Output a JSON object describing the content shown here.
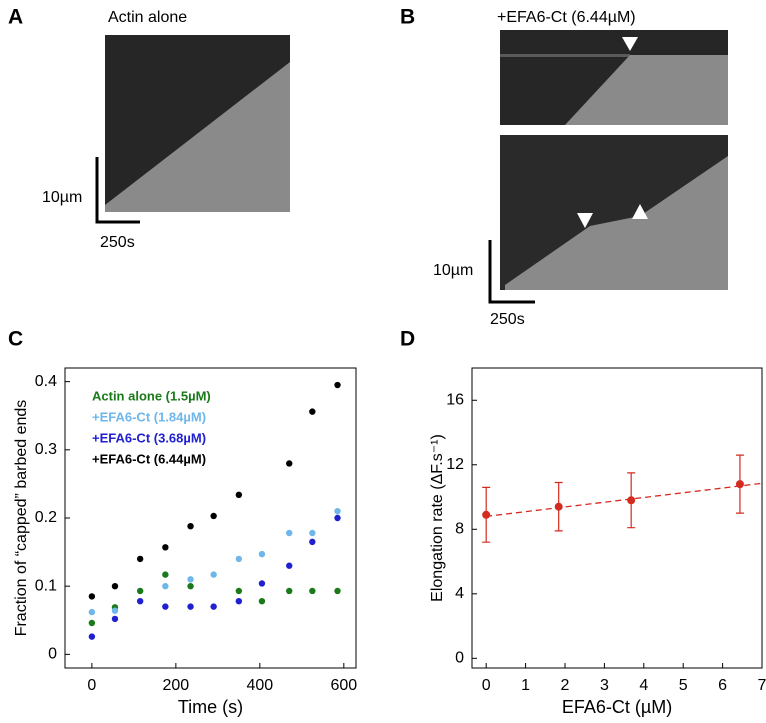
{
  "panels": {
    "A": {
      "label": "A",
      "title": "Actin alone",
      "scale_y": "10µm",
      "scale_x": "250s"
    },
    "B": {
      "label": "B",
      "title": "+EFA6-Ct (6.44µM)",
      "scale_y": "10µm",
      "scale_x": "250s"
    }
  },
  "chart_data": [
    {
      "type": "scatter",
      "panel": "C",
      "xlabel": "Time (s)",
      "ylabel": "Fraction of “capped” barbed ends",
      "x": [
        0,
        55,
        115,
        175,
        235,
        290,
        350,
        405,
        470,
        525,
        585
      ],
      "series": [
        {
          "name": "Actin alone (1.5µM)",
          "color": "#1a7a1a",
          "values": [
            0.046,
            0.069,
            0.093,
            0.117,
            0.1,
            null,
            0.093,
            0.078,
            0.093,
            0.093,
            0.093
          ]
        },
        {
          "name": "+EFA6-Ct (1.84µM)",
          "color": "#6fb7ea",
          "values": [
            0.062,
            0.064,
            null,
            0.1,
            0.11,
            0.117,
            0.14,
            0.147,
            0.178,
            0.178,
            0.21
          ]
        },
        {
          "name": "+EFA6-Ct (3.68µM)",
          "color": "#2020d0",
          "values": [
            0.026,
            0.052,
            0.078,
            0.07,
            0.07,
            0.07,
            0.078,
            0.104,
            0.13,
            0.165,
            0.2
          ]
        },
        {
          "name": "+EFA6-Ct (6.44µM)",
          "color": "#000000",
          "values": [
            0.085,
            0.1,
            0.14,
            0.157,
            0.188,
            0.203,
            0.234,
            null,
            0.28,
            0.356,
            0.395
          ]
        }
      ],
      "xlim": [
        -64,
        629
      ],
      "ylim": [
        -0.02,
        0.42
      ],
      "xticks": [
        0,
        200,
        400,
        600
      ],
      "yticks": [
        0,
        0.1,
        0.2,
        0.3,
        0.4
      ]
    },
    {
      "type": "errorbar",
      "panel": "D",
      "xlabel": "EFA6-Ct (µM)",
      "ylabel": "Elongation rate (ΔF.s⁻¹)",
      "series": [
        {
          "color": "#d42a1f",
          "x": [
            0,
            1.84,
            3.68,
            6.44
          ],
          "values": [
            8.9,
            9.4,
            9.8,
            10.8
          ],
          "errors": [
            1.7,
            1.5,
            1.7,
            1.8
          ]
        }
      ],
      "fit": {
        "x": [
          0,
          7
        ],
        "values": [
          8.8,
          10.85
        ]
      },
      "xlim": [
        -0.36,
        7
      ],
      "ylim": [
        -0.6,
        18
      ],
      "xticks": [
        0,
        1,
        2,
        3,
        4,
        5,
        6,
        7
      ],
      "yticks": [
        0,
        4,
        8,
        12,
        16
      ]
    }
  ]
}
